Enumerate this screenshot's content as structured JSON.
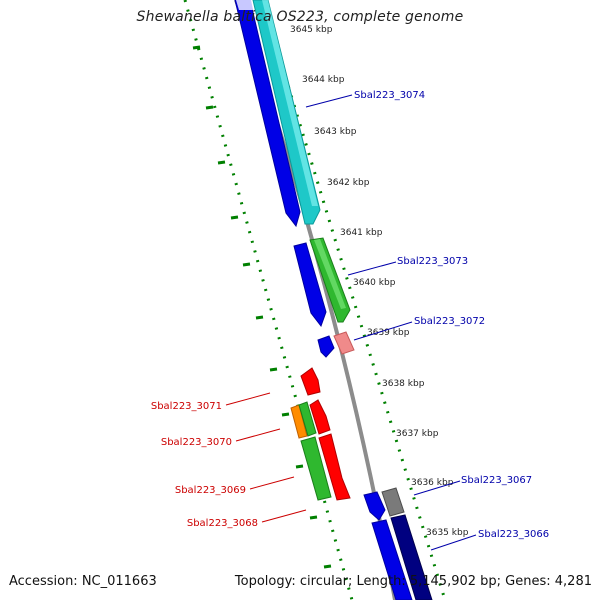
{
  "title": "Shewanella baltica OS223, complete genome",
  "footer": {
    "accession": "Accession: NC_011663",
    "summary": "Topology: circular; Length: 5,145,902 bp; Genes: 4,281"
  },
  "ticks": [
    {
      "label": "3645 kbp"
    },
    {
      "label": "3644 kbp"
    },
    {
      "label": "3643 kbp"
    },
    {
      "label": "3642 kbp"
    },
    {
      "label": "3641 kbp"
    },
    {
      "label": "3640 kbp"
    },
    {
      "label": "3639 kbp"
    },
    {
      "label": "3638 kbp"
    },
    {
      "label": "3637 kbp"
    },
    {
      "label": "3636 kbp"
    },
    {
      "label": "3635 kbp"
    }
  ],
  "gene_labels": [
    {
      "text": "Sbal223_3074",
      "color": "#0000aa"
    },
    {
      "text": "Sbal223_3073",
      "color": "#0000aa"
    },
    {
      "text": "Sbal223_3072",
      "color": "#0000aa"
    },
    {
      "text": "Sbal223_3071",
      "color": "#cc0000"
    },
    {
      "text": "Sbal223_3070",
      "color": "#cc0000"
    },
    {
      "text": "Sbal223_3069",
      "color": "#cc0000"
    },
    {
      "text": "Sbal223_3068",
      "color": "#cc0000"
    },
    {
      "text": "Sbal223_3067",
      "color": "#0000aa"
    },
    {
      "text": "Sbal223_3066",
      "color": "#0000aa"
    }
  ],
  "colors": {
    "backbone": "#8c8c8c",
    "tick_dots": "#008000",
    "tick_label": "#222222"
  }
}
